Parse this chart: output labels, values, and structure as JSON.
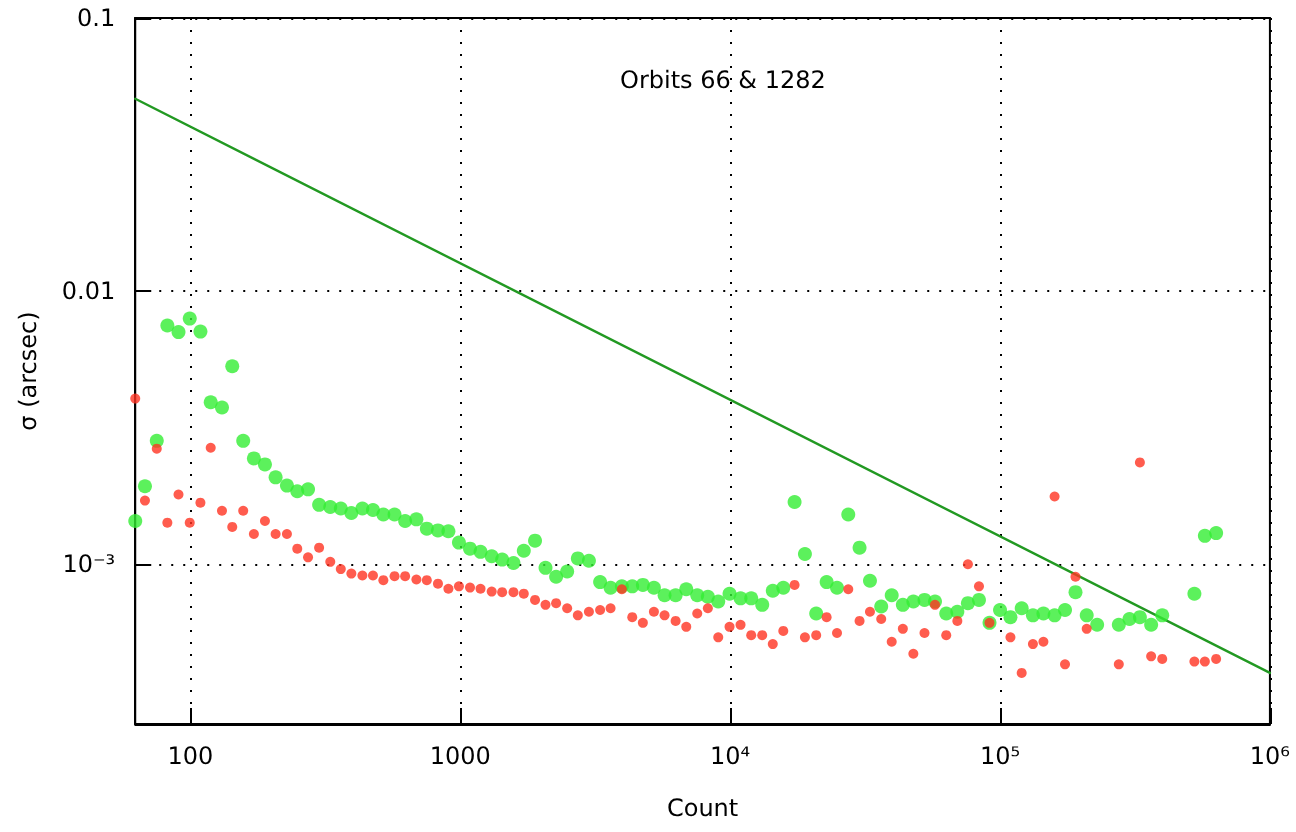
{
  "chart_data": {
    "type": "scatter",
    "xlabel": "Count",
    "ylabel": "σ (arcsec)",
    "annotations": [
      "Orbits 66 & 1282"
    ],
    "log": "xy",
    "grid": true,
    "marker": "circle",
    "xlim": [
      62.5,
      1000000
    ],
    "ylim": [
      0.00026,
      0.1
    ],
    "xticks": [
      100,
      1000,
      {
        "value": 10000,
        "label": "10⁴"
      },
      {
        "value": 100000,
        "label": "10⁵"
      },
      {
        "value": 1000000,
        "label": "10⁶"
      }
    ],
    "yticks": [
      {
        "value": 0.001,
        "label": "10⁻³"
      },
      0.01,
      0.1
    ],
    "series": [
      {
        "color": "#33ee33",
        "x": [
          62.5,
          67.9,
          75.1,
          82.2,
          90.4,
          99.5,
          109,
          119,
          131,
          143,
          157,
          172,
          189,
          207,
          228,
          249,
          273,
          300,
          330,
          361,
          395,
          434,
          475,
          519,
          571,
          625,
          688,
          752,
          827,
          904,
          989,
          1087,
          1189,
          1308,
          1430,
          1575,
          1720,
          1893,
          2070,
          2266,
          2490,
          2727,
          2998,
          3298,
          3606,
          3970,
          4339,
          4750,
          5220,
          5716,
          6281,
          6878,
          7554,
          8270,
          9036,
          9950,
          10930,
          11970,
          13150,
          14390,
          15740,
          17330,
          18930,
          20840,
          22780,
          24890,
          27400,
          30170,
          32970,
          36290,
          39690,
          43650,
          47740,
          52500,
          57420,
          63200,
          69480,
          76030,
          83560,
          91420,
          100000,
          109300,
          120300,
          132400,
          144800,
          159300,
          174100,
          190400,
          209500,
          229000,
          275500,
          301700,
          329800,
          363000,
          399000,
          525000,
          574000,
          632000
        ],
        "values": [
          0.00144,
          0.00193,
          0.00283,
          0.00748,
          0.00708,
          0.00793,
          0.00711,
          0.00392,
          0.00375,
          0.00531,
          0.00283,
          0.00244,
          0.00232,
          0.00208,
          0.00194,
          0.00185,
          0.00188,
          0.00165,
          0.00162,
          0.0016,
          0.00154,
          0.0016,
          0.00158,
          0.00152,
          0.00152,
          0.00144,
          0.00146,
          0.00135,
          0.00133,
          0.00132,
          0.0012,
          0.00114,
          0.00111,
          0.00107,
          0.00104,
          0.00101,
          0.00112,
          0.00122,
          0.00097,
          0.0009,
          0.00094,
          0.00105,
          0.00103,
          0.00086,
          0.00082,
          0.00083,
          0.00083,
          0.00084,
          0.00082,
          0.00077,
          0.00077,
          0.00081,
          0.00077,
          0.00076,
          0.00073,
          0.00078,
          0.00075,
          0.00075,
          0.00071,
          0.0008,
          0.00082,
          0.00169,
          0.00109,
          0.00066,
          0.00086,
          0.00082,
          0.00152,
          0.00115,
          0.00087,
          0.0007,
          0.00077,
          0.00071,
          0.00073,
          0.00074,
          0.00073,
          0.00066,
          0.00067,
          0.00072,
          0.00074,
          0.00061,
          0.00068,
          0.00064,
          0.00069,
          0.00065,
          0.00066,
          0.00065,
          0.00068,
          0.00079,
          0.00065,
          0.0006,
          0.0006,
          0.00063,
          0.00064,
          0.0006,
          0.00065,
          0.00078,
          0.00127,
          0.0013
        ]
      },
      {
        "color": "#ff3322",
        "x": [
          62.5,
          67.9,
          75.1,
          82.2,
          90.4,
          99.5,
          109,
          119,
          131,
          143,
          157,
          172,
          189,
          207,
          228,
          249,
          273,
          300,
          330,
          361,
          395,
          434,
          475,
          519,
          571,
          625,
          688,
          752,
          827,
          904,
          989,
          1087,
          1189,
          1308,
          1430,
          1575,
          1720,
          1893,
          2070,
          2266,
          2490,
          2727,
          2998,
          3298,
          3606,
          3970,
          4339,
          4750,
          5220,
          5716,
          6281,
          6878,
          7554,
          8270,
          9036,
          9950,
          10930,
          11970,
          13150,
          14390,
          15740,
          17330,
          18930,
          20840,
          22780,
          24890,
          27400,
          30170,
          32970,
          36290,
          39690,
          43650,
          47740,
          52500,
          57420,
          63200,
          69480,
          76030,
          83560,
          91420,
          109300,
          120300,
          132400,
          144800,
          159300,
          174100,
          190400,
          209500,
          275500,
          329800,
          363000,
          399000,
          525000,
          574000,
          632000
        ],
        "values": [
          0.00404,
          0.00171,
          0.00265,
          0.00142,
          0.0018,
          0.00142,
          0.00168,
          0.00267,
          0.00157,
          0.00137,
          0.00157,
          0.00129,
          0.00144,
          0.00129,
          0.00129,
          0.00114,
          0.00106,
          0.00115,
          0.00102,
          0.00096,
          0.000924,
          0.000909,
          0.000909,
          0.000874,
          0.000904,
          0.000904,
          0.000879,
          0.000874,
          0.000849,
          0.000813,
          0.00083,
          0.000821,
          0.000813,
          0.000794,
          0.00079,
          0.00079,
          0.00078,
          0.00074,
          0.00071,
          0.00072,
          0.00069,
          0.00065,
          0.00067,
          0.00068,
          0.00069,
          0.00081,
          0.00064,
          0.00061,
          0.00067,
          0.00065,
          0.00062,
          0.00059,
          0.00066,
          0.00069,
          0.00054,
          0.00059,
          0.0006,
          0.00055,
          0.00055,
          0.00051,
          0.00057,
          0.00084,
          0.00054,
          0.00055,
          0.00064,
          0.00056,
          0.00081,
          0.00062,
          0.00067,
          0.00063,
          0.00052,
          0.00058,
          0.00047,
          0.00056,
          0.00071,
          0.00055,
          0.00062,
          0.001,
          0.00083,
          0.00061,
          0.00054,
          0.0004,
          0.00051,
          0.00052,
          0.00177,
          0.00043,
          0.0009,
          0.00058,
          0.00043,
          0.00236,
          0.00046,
          0.00045,
          0.00044,
          0.00044,
          0.00045
        ]
      },
      {
        "type": "line",
        "color": "#229922",
        "marker": "none",
        "line_style": "solid",
        "x": [
          62.5,
          1000000
        ],
        "values": [
          0.0506,
          0.0004
        ]
      }
    ]
  }
}
